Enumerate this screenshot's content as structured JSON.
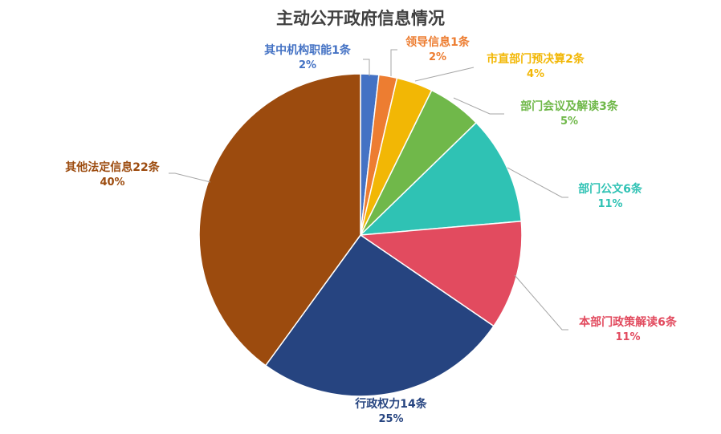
{
  "chart_data": {
    "type": "pie",
    "title": "主动公开政府信息情况",
    "slices": [
      {
        "name": "其中机构职能1条",
        "value": 1,
        "percent": "2%",
        "color": "#4472c4"
      },
      {
        "name": "领导信息1条",
        "value": 1,
        "percent": "2%",
        "color": "#ed7d31"
      },
      {
        "name": "市直部门预决算2条",
        "value": 2,
        "percent": "4%",
        "color": "#f2b705"
      },
      {
        "name": "部门会议及解读3条",
        "value": 3,
        "percent": "5%",
        "color": "#70b84a"
      },
      {
        "name": "部门公文6条",
        "value": 6,
        "percent": "11%",
        "color": "#2fc2b4"
      },
      {
        "name": "本部门政策解读6条",
        "value": 6,
        "percent": "11%",
        "color": "#e24b5f"
      },
      {
        "name": "行政权力14条",
        "value": 14,
        "percent": "25%",
        "color": "#264480"
      },
      {
        "name": "其他法定信息22条",
        "value": 22,
        "percent": "40%",
        "color": "#9c4b0e"
      }
    ],
    "legend": "none"
  }
}
